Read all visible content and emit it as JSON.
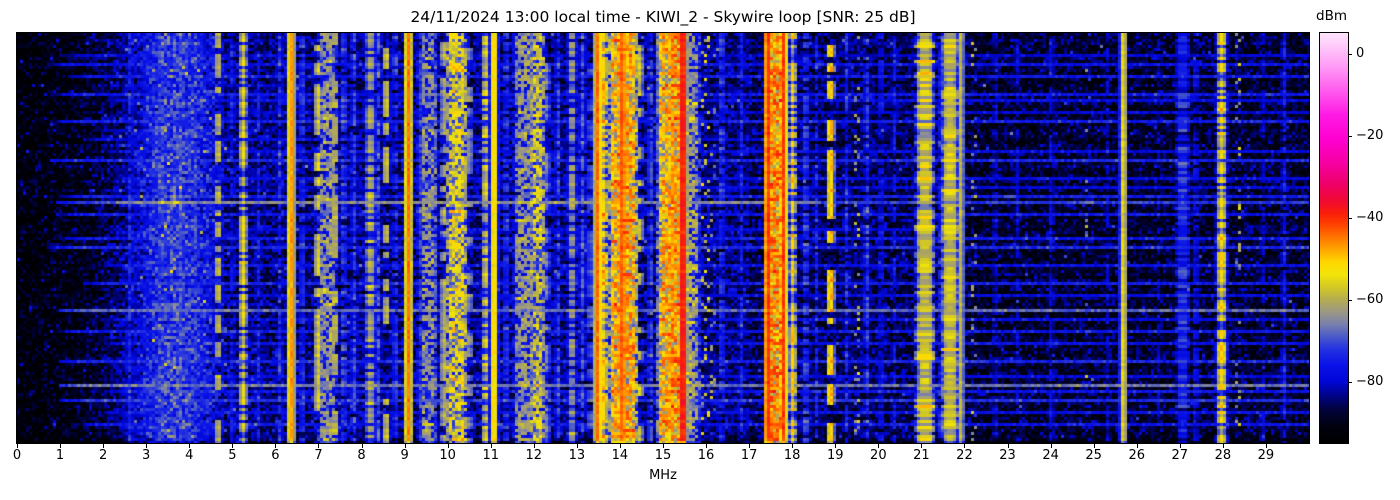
{
  "title": "24/11/2024 13:00 local time - KIWI_2 - Skywire loop [SNR: 25 dB]",
  "chart_data": {
    "type": "heatmap",
    "subtype": "radio-spectrogram-waterfall",
    "x_axis": {
      "label": "MHz",
      "min": 0,
      "max": 30,
      "tick_values": [
        0,
        1,
        2,
        3,
        4,
        5,
        6,
        7,
        8,
        9,
        10,
        11,
        12,
        13,
        14,
        15,
        16,
        17,
        18,
        19,
        20,
        21,
        22,
        23,
        24,
        25,
        26,
        27,
        28,
        29
      ]
    },
    "y_axis": {
      "label": "",
      "note": "time axis, no ticks shown"
    },
    "colorbar": {
      "label": "dBm",
      "min": -95,
      "max": 5,
      "tick_values": [
        0,
        -20,
        -40,
        -60,
        -80
      ],
      "tick_labels": [
        "0",
        "−20",
        "−40",
        "−60",
        "−80"
      ],
      "stops": [
        [
          -95,
          "#000000"
        ],
        [
          -91,
          "#01010f"
        ],
        [
          -87,
          "#020239"
        ],
        [
          -84,
          "#00027a"
        ],
        [
          -80,
          "#0006d6"
        ],
        [
          -76,
          "#0a12e8"
        ],
        [
          -72,
          "#2433e0"
        ],
        [
          -69,
          "#4a5ac8"
        ],
        [
          -66,
          "#7a80ac"
        ],
        [
          -63,
          "#9c9884"
        ],
        [
          -60,
          "#b4ac50"
        ],
        [
          -57,
          "#d2c825"
        ],
        [
          -54,
          "#f0e40a"
        ],
        [
          -51,
          "#ffd800"
        ],
        [
          -48,
          "#ffa800"
        ],
        [
          -45,
          "#ff7800"
        ],
        [
          -42,
          "#ff4600"
        ],
        [
          -39,
          "#fa1e0a"
        ],
        [
          -36,
          "#f00a32"
        ],
        [
          -32,
          "#ee0066"
        ],
        [
          -27,
          "#f600a0"
        ],
        [
          -21,
          "#ff00d0"
        ],
        [
          -15,
          "#ff1ae4"
        ],
        [
          -9,
          "#ff5cee"
        ],
        [
          -3,
          "#ff9cf6"
        ],
        [
          2,
          "#ffccfa"
        ],
        [
          5,
          "#ffe4fd"
        ]
      ]
    },
    "background_noise": {
      "low_band_dbm": -93,
      "low_band_slope_db_per_mhz": 1.7,
      "noise_hump": {
        "center_mhz": 3.6,
        "sigma_mhz": 0.8,
        "amplitude_db": 15
      },
      "mid_band_dbm": -84,
      "high_band_dbm": -86,
      "upper_band_dbm": -88.5,
      "mid_band_range_mhz": [
        4.8,
        17
      ],
      "high_band_range_mhz": [
        17,
        22
      ],
      "speckle_sigma_db": 4.2
    },
    "signals_format": [
      "freq_mhz",
      "width_mhz",
      "peak_dbm",
      "style"
    ],
    "signals": [
      [
        2.62,
        0.05,
        -74,
        "speck"
      ],
      [
        3.35,
        0.06,
        -71,
        "speck"
      ],
      [
        3.8,
        0.05,
        -71,
        "speck"
      ],
      [
        4.15,
        0.04,
        -73,
        "speck"
      ],
      [
        4.67,
        0.03,
        -58,
        "dash"
      ],
      [
        5.0,
        0.04,
        -75,
        "speck"
      ],
      [
        5.25,
        0.05,
        -56,
        "speck"
      ],
      [
        5.6,
        0.04,
        -75,
        "speck"
      ],
      [
        6.1,
        0.04,
        -73,
        "speck"
      ],
      [
        6.36,
        0.025,
        -47,
        "solid"
      ],
      [
        6.62,
        0.05,
        -72,
        "speck"
      ],
      [
        6.98,
        0.04,
        -56,
        "dash"
      ],
      [
        7.2,
        0.12,
        -63,
        "band"
      ],
      [
        7.38,
        0.04,
        -58,
        "dash"
      ],
      [
        7.58,
        0.04,
        -70,
        "speck"
      ],
      [
        7.82,
        0.05,
        -72,
        "speck"
      ],
      [
        8.2,
        0.07,
        -60,
        "speck"
      ],
      [
        8.38,
        0.04,
        -70,
        "speck"
      ],
      [
        8.57,
        0.03,
        -57,
        "dash"
      ],
      [
        8.78,
        0.04,
        -72,
        "speck"
      ],
      [
        9.08,
        0.025,
        -45,
        "solid"
      ],
      [
        9.35,
        0.05,
        -71,
        "speck"
      ],
      [
        9.55,
        0.1,
        -64,
        "band"
      ],
      [
        9.9,
        0.03,
        -60,
        "dash"
      ],
      [
        10.2,
        0.14,
        -55,
        "band"
      ],
      [
        10.5,
        0.03,
        -63,
        "dash"
      ],
      [
        10.87,
        0.03,
        -56,
        "speck"
      ],
      [
        11.07,
        0.02,
        -50,
        "solid"
      ],
      [
        11.35,
        0.05,
        -72,
        "speck"
      ],
      [
        11.75,
        0.12,
        -63,
        "band"
      ],
      [
        12.08,
        0.08,
        -57,
        "band"
      ],
      [
        12.3,
        0.04,
        -66,
        "dash"
      ],
      [
        12.55,
        0.04,
        -72,
        "speck"
      ],
      [
        12.88,
        0.06,
        -63,
        "speck"
      ],
      [
        13.12,
        0.05,
        -70,
        "speck"
      ],
      [
        13.3,
        0.04,
        -68,
        "dash"
      ],
      [
        13.48,
        0.025,
        -44,
        "solid"
      ],
      [
        13.62,
        0.03,
        -50,
        "speck"
      ],
      [
        13.95,
        0.1,
        -48,
        "band"
      ],
      [
        14.05,
        0.02,
        -42,
        "solid"
      ],
      [
        14.18,
        0.1,
        -47,
        "band"
      ],
      [
        14.45,
        0.04,
        -58,
        "dash"
      ],
      [
        14.7,
        0.04,
        -70,
        "speck"
      ],
      [
        15.08,
        0.1,
        -48,
        "band"
      ],
      [
        15.3,
        0.09,
        -46,
        "band"
      ],
      [
        15.45,
        0.025,
        -36,
        "solid"
      ],
      [
        15.62,
        0.12,
        -62,
        "band"
      ],
      [
        16.0,
        0.12,
        -58,
        "sparse"
      ],
      [
        16.35,
        0.05,
        -72,
        "speck"
      ],
      [
        16.8,
        0.04,
        -74,
        "speck"
      ],
      [
        17.42,
        0.02,
        -40,
        "solid"
      ],
      [
        17.6,
        0.08,
        -45,
        "band"
      ],
      [
        17.78,
        0.02,
        -41,
        "solid"
      ],
      [
        18.0,
        0.04,
        -52,
        "speck"
      ],
      [
        18.3,
        0.06,
        -71,
        "speck"
      ],
      [
        18.55,
        0.04,
        -75,
        "speck"
      ],
      [
        18.88,
        0.02,
        -49,
        "dash"
      ],
      [
        19.25,
        0.04,
        -74,
        "speck"
      ],
      [
        19.5,
        0.03,
        -60,
        "sparse"
      ],
      [
        19.72,
        0.05,
        -72,
        "speck"
      ],
      [
        20.05,
        0.04,
        -77,
        "speck"
      ],
      [
        20.35,
        0.04,
        -76,
        "dash"
      ],
      [
        21.07,
        0.1,
        -55,
        "fuzzy"
      ],
      [
        21.45,
        0.04,
        -72,
        "speck"
      ],
      [
        21.65,
        0.08,
        -55,
        "fuzzy"
      ],
      [
        21.9,
        0.02,
        -59,
        "solid"
      ],
      [
        22.2,
        0.03,
        -62,
        "sparse"
      ],
      [
        22.7,
        0.04,
        -80,
        "speck"
      ],
      [
        23.2,
        0.04,
        -79,
        "dash"
      ],
      [
        24.0,
        0.03,
        -78,
        "dash"
      ],
      [
        24.82,
        0.03,
        -67,
        "sparse"
      ],
      [
        25.3,
        0.04,
        -80,
        "speck"
      ],
      [
        25.67,
        0.02,
        -55,
        "solid"
      ],
      [
        26.5,
        0.03,
        -80,
        "dash"
      ],
      [
        27.05,
        0.07,
        -73,
        "fuzzy"
      ],
      [
        27.35,
        0.04,
        -77,
        "speck"
      ],
      [
        27.95,
        0.06,
        -53,
        "speck"
      ],
      [
        28.35,
        0.03,
        -61,
        "sparse"
      ],
      [
        28.9,
        0.03,
        -79,
        "dash"
      ],
      [
        29.4,
        0.05,
        -76,
        "speck"
      ]
    ],
    "events_format": [
      "time_frac",
      "from_mhz",
      "to_mhz",
      "level_dbm"
    ],
    "events": [
      [
        0.055,
        1.0,
        30,
        -80
      ],
      [
        0.075,
        0.8,
        30,
        -77
      ],
      [
        0.1,
        1.2,
        30,
        -76
      ],
      [
        0.148,
        0.8,
        30,
        -76
      ],
      [
        0.16,
        2.0,
        30,
        -78
      ],
      [
        0.19,
        5.0,
        30,
        -80
      ],
      [
        0.215,
        0.9,
        30,
        -75
      ],
      [
        0.26,
        1.5,
        19,
        -79
      ],
      [
        0.285,
        2.0,
        30,
        -78
      ],
      [
        0.312,
        0.8,
        30,
        -74
      ],
      [
        0.35,
        2.2,
        30,
        -78
      ],
      [
        0.375,
        6,
        30,
        -79
      ],
      [
        0.398,
        1.0,
        30,
        -75
      ],
      [
        0.415,
        0.9,
        30,
        -72
      ],
      [
        0.415,
        1.9,
        18.6,
        -65
      ],
      [
        0.415,
        3.15,
        3.75,
        -57
      ],
      [
        0.444,
        1.0,
        30,
        -76
      ],
      [
        0.475,
        5,
        22,
        -79
      ],
      [
        0.5,
        1.0,
        30,
        -76
      ],
      [
        0.525,
        0.8,
        30,
        -74
      ],
      [
        0.565,
        2,
        30,
        -77
      ],
      [
        0.61,
        1.5,
        30,
        -75
      ],
      [
        0.638,
        4,
        30,
        -78
      ],
      [
        0.675,
        1.0,
        30,
        -68
      ],
      [
        0.7,
        2,
        30,
        -78
      ],
      [
        0.725,
        1.0,
        30,
        -76
      ],
      [
        0.76,
        2,
        30,
        -77
      ],
      [
        0.8,
        1.0,
        30,
        -74
      ],
      [
        0.835,
        3,
        30,
        -78
      ],
      [
        0.857,
        1.0,
        30,
        -67
      ],
      [
        0.878,
        2,
        30,
        -76
      ],
      [
        0.9,
        1.0,
        30,
        -73
      ],
      [
        0.93,
        2,
        30,
        -77
      ],
      [
        0.955,
        1.5,
        30,
        -76
      ]
    ]
  }
}
